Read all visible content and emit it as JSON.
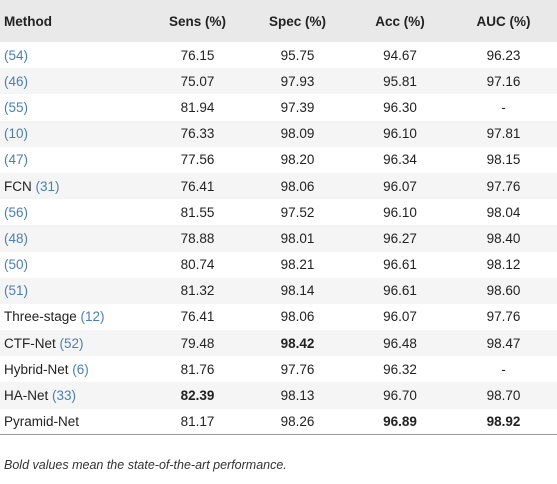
{
  "table": {
    "headers": [
      "Method",
      "Sens (%)",
      "Spec (%)",
      "Acc (%)",
      "AUC (%)"
    ],
    "rows": [
      {
        "method": "",
        "ref": "(54)",
        "sens": "76.15",
        "spec": "95.75",
        "acc": "94.67",
        "auc": "96.23"
      },
      {
        "method": "",
        "ref": "(46)",
        "sens": "75.07",
        "spec": "97.93",
        "acc": "95.81",
        "auc": "97.16"
      },
      {
        "method": "",
        "ref": "(55)",
        "sens": "81.94",
        "spec": "97.39",
        "acc": "96.30",
        "auc": "-"
      },
      {
        "method": "",
        "ref": "(10)",
        "sens": "76.33",
        "spec": "98.09",
        "acc": "96.10",
        "auc": "97.81"
      },
      {
        "method": "",
        "ref": "(47)",
        "sens": "77.56",
        "spec": "98.20",
        "acc": "96.34",
        "auc": "98.15"
      },
      {
        "method": "FCN ",
        "ref": "(31)",
        "sens": "76.41",
        "spec": "98.06",
        "acc": "96.07",
        "auc": "97.76"
      },
      {
        "method": "",
        "ref": "(56)",
        "sens": "81.55",
        "spec": "97.52",
        "acc": "96.10",
        "auc": "98.04"
      },
      {
        "method": "",
        "ref": "(48)",
        "sens": "78.88",
        "spec": "98.01",
        "acc": "96.27",
        "auc": "98.40"
      },
      {
        "method": "",
        "ref": "(50)",
        "sens": "80.74",
        "spec": "98.21",
        "acc": "96.61",
        "auc": "98.12"
      },
      {
        "method": "",
        "ref": "(51)",
        "sens": "81.32",
        "spec": "98.14",
        "acc": "96.61",
        "auc": "98.60"
      },
      {
        "method": "Three-stage ",
        "ref": "(12)",
        "sens": "76.41",
        "spec": "98.06",
        "acc": "96.07",
        "auc": "97.76"
      },
      {
        "method": "CTF-Net ",
        "ref": "(52)",
        "sens": "79.48",
        "spec": "98.42",
        "acc": "96.48",
        "auc": "98.47"
      },
      {
        "method": "Hybrid-Net ",
        "ref": "(6)",
        "sens": "81.76",
        "spec": "97.76",
        "acc": "96.32",
        "auc": "-"
      },
      {
        "method": "HA-Net ",
        "ref": "(33)",
        "sens": "82.39",
        "spec": "98.13",
        "acc": "96.70",
        "auc": "98.70"
      },
      {
        "method": "Pyramid-Net",
        "ref": "",
        "sens": "81.17",
        "spec": "98.26",
        "acc": "96.89",
        "auc": "98.92"
      }
    ]
  },
  "footnote": "Bold values mean the state-of-the-art performance."
}
